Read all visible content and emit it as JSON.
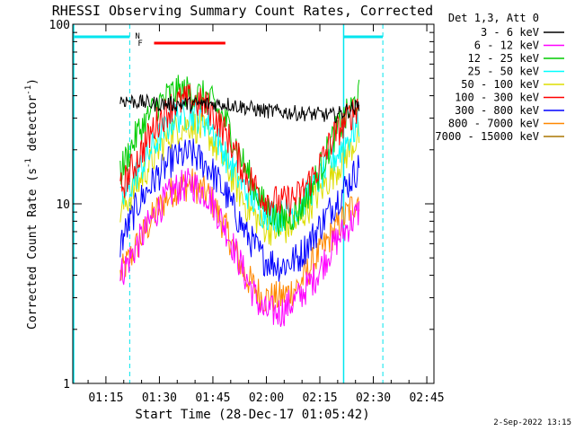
{
  "chart_data": {
    "type": "line",
    "title": "RHESSI Observing Summary Count Rates, Corrected",
    "xlabel": "Start Time (28-Dec-17 01:05:42)",
    "ylabel_main": "Corrected Count Rate (s",
    "ylabel_sup1": "-1",
    "ylabel_mid": " detector",
    "ylabel_sup2": "-1",
    "ylabel_end": ")",
    "yscale": "log",
    "ylim": [
      1,
      100
    ],
    "xlim_minutes": [
      "01:05:42",
      "02:47:00"
    ],
    "x_ticks": [
      "01:15",
      "01:30",
      "01:45",
      "02:00",
      "02:15",
      "02:30",
      "02:45"
    ],
    "y_ticks": [
      "1",
      "10",
      "100"
    ],
    "legend_position": "top-right",
    "legend_header": "Det 1,3, Att 0",
    "data_start": "01:19",
    "data_end": "02:26",
    "series": [
      {
        "name": "3 - 6 keV",
        "color": "#000000",
        "t": [
          0,
          10,
          20,
          30,
          40,
          50,
          60,
          67
        ],
        "v": [
          38,
          36,
          36,
          36,
          33,
          32,
          31,
          35
        ]
      },
      {
        "name": "6 - 12 keV",
        "color": "#ff00ff",
        "t": [
          0,
          5,
          10,
          15,
          20,
          25,
          30,
          35,
          40,
          45,
          50,
          55,
          60,
          67
        ],
        "v": [
          4,
          6,
          9,
          12,
          13,
          11,
          7,
          4,
          2.5,
          2.5,
          3,
          4,
          6,
          9
        ]
      },
      {
        "name": "12 - 25 keV",
        "color": "#00cc00",
        "t": [
          0,
          5,
          10,
          15,
          20,
          25,
          30,
          35,
          40,
          45,
          50,
          55,
          60,
          67
        ],
        "v": [
          15,
          25,
          35,
          42,
          42,
          38,
          28,
          16,
          10,
          8,
          9,
          14,
          24,
          40
        ]
      },
      {
        "name": "25 - 50 keV",
        "color": "#00ffff",
        "t": [
          0,
          5,
          10,
          15,
          20,
          25,
          30,
          35,
          40,
          45,
          50,
          55,
          60,
          67
        ],
        "v": [
          10,
          15,
          22,
          30,
          32,
          28,
          18,
          12,
          9,
          8.5,
          9.5,
          13,
          18,
          28
        ]
      },
      {
        "name": "50 - 100 keV",
        "color": "#dddd00",
        "t": [
          0,
          5,
          10,
          15,
          20,
          25,
          30,
          35,
          40,
          45,
          50,
          55,
          60,
          67
        ],
        "v": [
          9,
          13,
          19,
          26,
          28,
          24,
          16,
          10,
          7.5,
          7,
          8,
          11,
          15,
          24
        ]
      },
      {
        "name": "100 - 300 keV",
        "color": "#ff0000",
        "t": [
          0,
          5,
          10,
          15,
          20,
          25,
          30,
          35,
          40,
          45,
          50,
          55,
          60,
          67
        ],
        "v": [
          12,
          18,
          28,
          36,
          38,
          34,
          24,
          15,
          11,
          10,
          11,
          15,
          24,
          36
        ]
      },
      {
        "name": "300 - 800 keV",
        "color": "#0000ff",
        "t": [
          0,
          5,
          10,
          15,
          20,
          25,
          30,
          35,
          40,
          45,
          50,
          55,
          60,
          67
        ],
        "v": [
          6,
          10,
          14,
          18,
          19,
          16,
          11,
          7,
          5,
          4.5,
          5,
          7,
          10,
          16
        ]
      },
      {
        "name": "800 - 7000 keV",
        "color": "#ff8800",
        "t": [
          0,
          5,
          10,
          15,
          20,
          25,
          30,
          35,
          40,
          45,
          50,
          55,
          60,
          67
        ],
        "v": [
          4,
          6,
          9,
          12,
          13,
          11,
          7,
          4,
          3,
          3,
          3.5,
          5,
          7,
          11
        ]
      },
      {
        "name": "7000 - 15000 keV",
        "color": "#aa7700",
        "t": [],
        "v": []
      }
    ],
    "state_bars": {
      "night_label": "N",
      "flare_label": "F",
      "night_color": "#00e5ee",
      "flare_color": "#ff0000"
    },
    "timestamp": "2-Sep-2022 13:15"
  }
}
